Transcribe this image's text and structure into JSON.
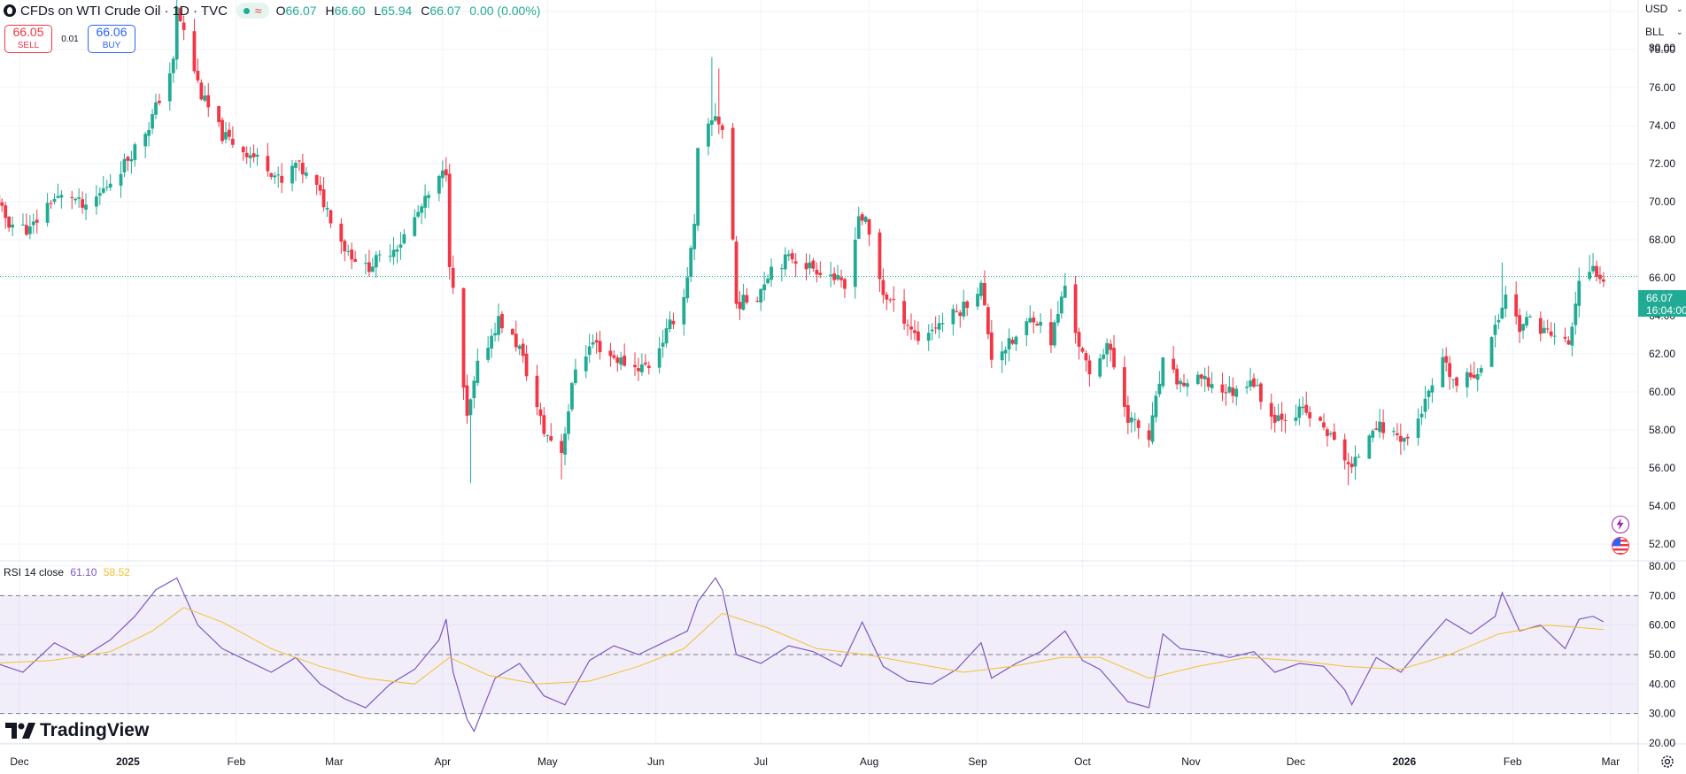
{
  "header": {
    "title": "CFDs on WTI Crude Oil · 1D · TVC",
    "ohlc": {
      "o": "66.07",
      "h": "66.60",
      "l": "65.94",
      "c": "66.07",
      "chg": "0.00 (0.00%)"
    },
    "status_icon": "market-open-dot-icon",
    "delay_icon": "approx-wave-icon"
  },
  "trade": {
    "sell_price": "66.05",
    "sell_label": "SELL",
    "spread": "0.01",
    "buy_price": "66.06",
    "buy_label": "BUY"
  },
  "axis_controls": {
    "currency": "USD",
    "unit": "BLL"
  },
  "last_price": {
    "value": "66.07",
    "countdown": "16:04:00"
  },
  "rsi_legend": {
    "name": "RSI",
    "params": "14 close",
    "rsi": "61.10",
    "ma": "58.52"
  },
  "brand": {
    "name": "TradingView",
    "logo_icon": "tradingview-logo-icon"
  },
  "icons": [
    "lightning-icon",
    "us-flag-icon",
    "settings-gear-icon"
  ],
  "colors": {
    "up": "#22ab94",
    "down": "#f23645",
    "rsi_line": "#7e57c2",
    "rsi_ma": "#f2c02f",
    "rsi_band": "#7e57c2"
  },
  "chart_data": [
    {
      "type": "candlestick",
      "title": "CFDs on WTI Crude Oil · 1D · TVC",
      "ylim": [
        51.4,
        80.6
      ],
      "y_ticks": [
        "80.00",
        "78.00",
        "76.00",
        "74.00",
        "72.00",
        "70.00",
        "68.00",
        "66.00",
        "64.00",
        "62.00",
        "60.00",
        "58.00",
        "56.00",
        "54.00",
        "52.00"
      ],
      "x_ticks": [
        {
          "label": "Dec",
          "date": "2024-12-01"
        },
        {
          "label": "2025",
          "date": "2025-01-01",
          "bold": true
        },
        {
          "label": "Feb",
          "date": "2025-02-01"
        },
        {
          "label": "Mar",
          "date": "2025-03-01"
        },
        {
          "label": "Apr",
          "date": "2025-04-01"
        },
        {
          "label": "May",
          "date": "2025-05-01"
        },
        {
          "label": "Jun",
          "date": "2025-06-01"
        },
        {
          "label": "Jul",
          "date": "2025-07-01"
        },
        {
          "label": "Aug",
          "date": "2025-08-01"
        },
        {
          "label": "Sep",
          "date": "2025-09-01"
        },
        {
          "label": "Oct",
          "date": "2025-10-01"
        },
        {
          "label": "Nov",
          "date": "2025-11-01"
        },
        {
          "label": "Dec",
          "date": "2025-12-01"
        },
        {
          "label": "2026",
          "date": "2026-01-01",
          "bold": true
        },
        {
          "label": "Feb",
          "date": "2026-02-01"
        },
        {
          "label": "Mar",
          "date": "2026-03-01"
        }
      ],
      "last_price": 66.07,
      "close_anchors": [
        [
          "2024-11-22",
          70.6
        ],
        [
          "2024-11-28",
          68.9
        ],
        [
          "2024-12-04",
          68.5
        ],
        [
          "2024-12-10",
          70.1
        ],
        [
          "2024-12-16",
          70.3
        ],
        [
          "2024-12-20",
          69.5
        ],
        [
          "2024-12-31",
          72.0
        ],
        [
          "2025-01-07",
          74.0
        ],
        [
          "2025-01-14",
          77.3
        ],
        [
          "2025-01-15",
          80.1
        ],
        [
          "2025-01-17",
          78.9
        ],
        [
          "2025-01-22",
          75.6
        ],
        [
          "2025-01-28",
          73.5
        ],
        [
          "2025-02-04",
          72.6
        ],
        [
          "2025-02-10",
          71.9
        ],
        [
          "2025-02-14",
          70.9
        ],
        [
          "2025-02-18",
          72.0
        ],
        [
          "2025-02-24",
          70.7
        ],
        [
          "2025-02-27",
          69.6
        ],
        [
          "2025-03-04",
          67.6
        ],
        [
          "2025-03-10",
          66.5
        ],
        [
          "2025-03-14",
          67.0
        ],
        [
          "2025-03-20",
          67.9
        ],
        [
          "2025-03-26",
          69.7
        ],
        [
          "2025-04-02",
          71.7
        ],
        [
          "2025-04-03",
          66.9
        ],
        [
          "2025-04-08",
          58.5
        ],
        [
          "2025-04-11",
          61.3
        ],
        [
          "2025-04-17",
          63.8
        ],
        [
          "2025-04-23",
          62.3
        ],
        [
          "2025-04-30",
          57.9
        ],
        [
          "2025-05-05",
          56.9
        ],
        [
          "2025-05-09",
          61.3
        ],
        [
          "2025-05-14",
          62.6
        ],
        [
          "2025-05-20",
          61.8
        ],
        [
          "2025-05-26",
          61.3
        ],
        [
          "2025-05-30",
          61.4
        ],
        [
          "2025-06-04",
          63.1
        ],
        [
          "2025-06-09",
          65.0
        ],
        [
          "2025-06-12",
          68.6
        ],
        [
          "2025-06-13",
          72.6
        ],
        [
          "2025-06-18",
          74.6
        ],
        [
          "2025-06-20",
          73.8
        ],
        [
          "2025-06-23",
          68.0
        ],
        [
          "2025-06-24",
          64.6
        ],
        [
          "2025-06-30",
          65.1
        ],
        [
          "2025-07-04",
          66.6
        ],
        [
          "2025-07-10",
          67.1
        ],
        [
          "2025-07-15",
          66.6
        ],
        [
          "2025-07-21",
          66.2
        ],
        [
          "2025-07-25",
          65.4
        ],
        [
          "2025-07-29",
          69.3
        ],
        [
          "2025-07-31",
          68.9
        ],
        [
          "2025-08-05",
          65.2
        ],
        [
          "2025-08-11",
          63.9
        ],
        [
          "2025-08-15",
          62.8
        ],
        [
          "2025-08-21",
          63.6
        ],
        [
          "2025-08-27",
          64.3
        ],
        [
          "2025-09-02",
          65.6
        ],
        [
          "2025-09-05",
          61.9
        ],
        [
          "2025-09-11",
          62.6
        ],
        [
          "2025-09-17",
          64.0
        ],
        [
          "2025-09-22",
          62.7
        ],
        [
          "2025-09-26",
          65.6
        ],
        [
          "2025-09-30",
          62.5
        ],
        [
          "2025-10-03",
          60.8
        ],
        [
          "2025-10-08",
          62.6
        ],
        [
          "2025-10-14",
          58.7
        ],
        [
          "2025-10-20",
          57.5
        ],
        [
          "2025-10-24",
          61.5
        ],
        [
          "2025-10-29",
          60.4
        ],
        [
          "2025-11-04",
          60.6
        ],
        [
          "2025-11-10",
          60.1
        ],
        [
          "2025-11-14",
          60.0
        ],
        [
          "2025-11-18",
          60.8
        ],
        [
          "2025-11-24",
          58.7
        ],
        [
          "2025-11-28",
          58.8
        ],
        [
          "2025-12-03",
          59.0
        ],
        [
          "2025-12-09",
          58.1
        ],
        [
          "2025-12-15",
          56.6
        ],
        [
          "2025-12-17",
          55.9
        ],
        [
          "2025-12-23",
          58.3
        ],
        [
          "2025-12-29",
          57.8
        ],
        [
          "2026-01-02",
          57.5
        ],
        [
          "2026-01-07",
          59.4
        ],
        [
          "2026-01-12",
          61.5
        ],
        [
          "2026-01-16",
          60.3
        ],
        [
          "2026-01-22",
          61.1
        ],
        [
          "2026-01-27",
          63.3
        ],
        [
          "2026-01-30",
          65.2
        ],
        [
          "2026-02-03",
          63.4
        ],
        [
          "2026-02-06",
          63.8
        ],
        [
          "2026-02-12",
          63.0
        ],
        [
          "2026-02-17",
          62.5
        ],
        [
          "2026-02-20",
          65.6
        ],
        [
          "2026-02-24",
          66.4
        ],
        [
          "2026-02-27",
          66.07
        ]
      ],
      "wick_extremes": [
        [
          "2025-01-15",
          80.8,
          "high"
        ],
        [
          "2025-04-09",
          55.2,
          "low"
        ],
        [
          "2025-05-05",
          55.4,
          "low"
        ],
        [
          "2025-06-17",
          77.6,
          "high"
        ],
        [
          "2025-06-19",
          77.0,
          "high"
        ],
        [
          "2025-12-16",
          55.1,
          "low"
        ],
        [
          "2026-01-29",
          66.8,
          "high"
        ],
        [
          "2026-02-23",
          67.2,
          "high"
        ]
      ]
    },
    {
      "type": "line",
      "title": "RSI 14 close",
      "ylim": [
        20,
        80
      ],
      "y_ticks": [
        "80.00",
        "70.00",
        "60.00",
        "50.00",
        "40.00",
        "30.00",
        "20.00"
      ],
      "bands": {
        "upper": 70,
        "middle": 50,
        "lower": 30
      },
      "series": [
        {
          "name": "RSI",
          "color": "#7e57c2",
          "points": [
            [
              "2024-11-22",
              48
            ],
            [
              "2024-12-02",
              44
            ],
            [
              "2024-12-11",
              54
            ],
            [
              "2024-12-19",
              49
            ],
            [
              "2024-12-27",
              55
            ],
            [
              "2025-01-03",
              63
            ],
            [
              "2025-01-09",
              72
            ],
            [
              "2025-01-15",
              76
            ],
            [
              "2025-01-21",
              60
            ],
            [
              "2025-01-28",
              52
            ],
            [
              "2025-02-04",
              48
            ],
            [
              "2025-02-11",
              44
            ],
            [
              "2025-02-18",
              49
            ],
            [
              "2025-02-25",
              40
            ],
            [
              "2025-03-04",
              35
            ],
            [
              "2025-03-10",
              32
            ],
            [
              "2025-03-17",
              40
            ],
            [
              "2025-03-24",
              45
            ],
            [
              "2025-03-31",
              55
            ],
            [
              "2025-04-02",
              62
            ],
            [
              "2025-04-04",
              44
            ],
            [
              "2025-04-08",
              28
            ],
            [
              "2025-04-10",
              24
            ],
            [
              "2025-04-16",
              42
            ],
            [
              "2025-04-23",
              47
            ],
            [
              "2025-04-30",
              36
            ],
            [
              "2025-05-06",
              33
            ],
            [
              "2025-05-13",
              48
            ],
            [
              "2025-05-20",
              53
            ],
            [
              "2025-05-27",
              50
            ],
            [
              "2025-06-03",
              54
            ],
            [
              "2025-06-10",
              58
            ],
            [
              "2025-06-13",
              68
            ],
            [
              "2025-06-18",
              76
            ],
            [
              "2025-06-20",
              72
            ],
            [
              "2025-06-24",
              50
            ],
            [
              "2025-07-01",
              47
            ],
            [
              "2025-07-09",
              53
            ],
            [
              "2025-07-16",
              51
            ],
            [
              "2025-07-24",
              46
            ],
            [
              "2025-07-30",
              61
            ],
            [
              "2025-08-05",
              46
            ],
            [
              "2025-08-12",
              41
            ],
            [
              "2025-08-19",
              40
            ],
            [
              "2025-08-26",
              45
            ],
            [
              "2025-09-02",
              54
            ],
            [
              "2025-09-05",
              42
            ],
            [
              "2025-09-12",
              47
            ],
            [
              "2025-09-19",
              51
            ],
            [
              "2025-09-26",
              58
            ],
            [
              "2025-10-01",
              48
            ],
            [
              "2025-10-06",
              45
            ],
            [
              "2025-10-14",
              34
            ],
            [
              "2025-10-20",
              32
            ],
            [
              "2025-10-24",
              57
            ],
            [
              "2025-10-29",
              52
            ],
            [
              "2025-11-05",
              51
            ],
            [
              "2025-11-12",
              49
            ],
            [
              "2025-11-19",
              51
            ],
            [
              "2025-11-25",
              44
            ],
            [
              "2025-12-02",
              47
            ],
            [
              "2025-12-09",
              46
            ],
            [
              "2025-12-15",
              38
            ],
            [
              "2025-12-17",
              33
            ],
            [
              "2025-12-24",
              49
            ],
            [
              "2025-12-31",
              44
            ],
            [
              "2026-01-07",
              54
            ],
            [
              "2026-01-13",
              62
            ],
            [
              "2026-01-20",
              57
            ],
            [
              "2026-01-27",
              63
            ],
            [
              "2026-01-29",
              71
            ],
            [
              "2026-02-03",
              58
            ],
            [
              "2026-02-09",
              60
            ],
            [
              "2026-02-16",
              52
            ],
            [
              "2026-02-20",
              62
            ],
            [
              "2026-02-24",
              63
            ],
            [
              "2026-02-27",
              61.1
            ]
          ]
        },
        {
          "name": "RSI-based MA",
          "color": "#f2c02f",
          "points": [
            [
              "2024-11-22",
              47
            ],
            [
              "2024-12-10",
              48
            ],
            [
              "2024-12-27",
              51
            ],
            [
              "2025-01-08",
              58
            ],
            [
              "2025-01-17",
              66
            ],
            [
              "2025-01-28",
              61
            ],
            [
              "2025-02-11",
              52
            ],
            [
              "2025-02-25",
              46
            ],
            [
              "2025-03-10",
              42
            ],
            [
              "2025-03-24",
              40
            ],
            [
              "2025-04-03",
              49
            ],
            [
              "2025-04-14",
              43
            ],
            [
              "2025-04-28",
              40
            ],
            [
              "2025-05-13",
              41
            ],
            [
              "2025-05-27",
              46
            ],
            [
              "2025-06-09",
              52
            ],
            [
              "2025-06-20",
              64
            ],
            [
              "2025-07-03",
              59
            ],
            [
              "2025-07-17",
              52
            ],
            [
              "2025-07-31",
              50
            ],
            [
              "2025-08-14",
              47
            ],
            [
              "2025-08-28",
              44
            ],
            [
              "2025-09-11",
              46
            ],
            [
              "2025-09-25",
              49
            ],
            [
              "2025-10-06",
              49
            ],
            [
              "2025-10-20",
              42
            ],
            [
              "2025-11-03",
              46
            ],
            [
              "2025-11-17",
              49
            ],
            [
              "2025-12-01",
              48
            ],
            [
              "2025-12-15",
              46
            ],
            [
              "2025-12-31",
              45
            ],
            [
              "2026-01-14",
              50
            ],
            [
              "2026-01-28",
              57
            ],
            [
              "2026-02-11",
              60
            ],
            [
              "2026-02-27",
              58.52
            ]
          ]
        }
      ]
    }
  ]
}
